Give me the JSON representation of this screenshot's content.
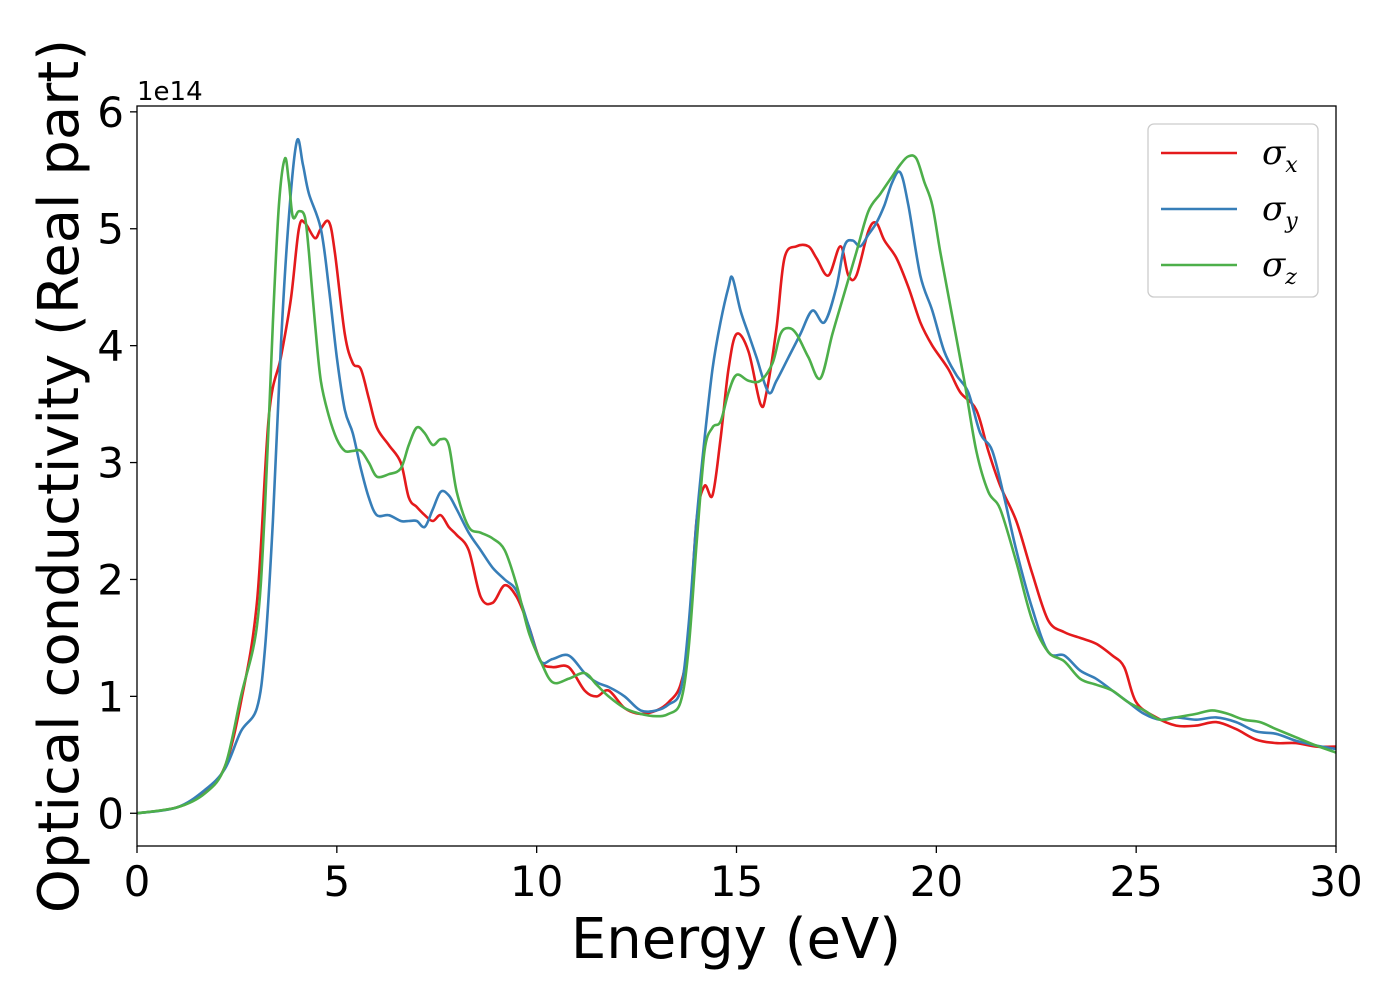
{
  "chart_data": {
    "type": "line",
    "title": "",
    "xlabel": "Energy (eV)",
    "ylabel": "Optical conductivity (Real part)",
    "y_offset_text": "1e14",
    "y_scale": 100000000000000.0,
    "xlim": [
      0,
      30
    ],
    "ylim": [
      -0.28,
      6.05
    ],
    "x_ticks": [
      0,
      5,
      10,
      15,
      20,
      25,
      30
    ],
    "y_ticks": [
      0,
      1,
      2,
      3,
      4,
      5,
      6
    ],
    "grid": false,
    "legend": "top-right",
    "series": [
      {
        "name": "σx",
        "symbol": "σ",
        "subscript": "x",
        "color": "#e41a1c",
        "x": [
          0,
          1,
          1.7,
          2.2,
          2.6,
          3.0,
          3.3,
          3.6,
          3.85,
          4.05,
          4.2,
          4.45,
          4.6,
          4.8,
          4.95,
          5.2,
          5.4,
          5.6,
          5.8,
          6.0,
          6.3,
          6.6,
          6.8,
          7.0,
          7.2,
          7.4,
          7.6,
          7.8,
          8.0,
          8.3,
          8.6,
          8.9,
          9.2,
          9.5,
          9.8,
          10.1,
          10.4,
          10.8,
          11.2,
          11.5,
          11.8,
          12.2,
          12.6,
          13.0,
          13.3,
          13.6,
          13.8,
          14.0,
          14.2,
          14.4,
          14.6,
          14.8,
          15.0,
          15.3,
          15.6,
          15.75,
          16.0,
          16.2,
          16.5,
          16.8,
          17.0,
          17.3,
          17.6,
          17.8,
          18.0,
          18.3,
          18.5,
          18.7,
          19.0,
          19.3,
          19.6,
          19.9,
          20.3,
          20.6,
          21.0,
          21.3,
          21.6,
          22.0,
          22.4,
          22.8,
          23.2,
          23.6,
          24.0,
          24.4,
          24.7,
          25.0,
          25.5,
          26.0,
          26.5,
          27.0,
          27.5,
          28.0,
          28.5,
          29.0,
          29.5,
          30.0
        ],
        "values": [
          0,
          0.05,
          0.18,
          0.4,
          0.95,
          1.8,
          3.4,
          3.9,
          4.4,
          5.0,
          5.05,
          4.92,
          5.0,
          5.06,
          4.8,
          4.1,
          3.85,
          3.8,
          3.55,
          3.3,
          3.15,
          3.0,
          2.7,
          2.62,
          2.55,
          2.5,
          2.55,
          2.45,
          2.38,
          2.25,
          1.85,
          1.8,
          1.95,
          1.85,
          1.6,
          1.3,
          1.25,
          1.25,
          1.05,
          1.0,
          1.05,
          0.9,
          0.85,
          0.88,
          0.95,
          1.1,
          1.5,
          2.5,
          2.8,
          2.72,
          3.2,
          3.8,
          4.1,
          3.95,
          3.5,
          3.6,
          4.15,
          4.75,
          4.85,
          4.85,
          4.75,
          4.6,
          4.85,
          4.6,
          4.6,
          4.98,
          5.05,
          4.9,
          4.75,
          4.5,
          4.2,
          4.0,
          3.8,
          3.6,
          3.45,
          3.1,
          2.8,
          2.5,
          2.05,
          1.65,
          1.55,
          1.5,
          1.45,
          1.35,
          1.25,
          0.95,
          0.82,
          0.75,
          0.75,
          0.78,
          0.72,
          0.63,
          0.6,
          0.6,
          0.57,
          0.57
        ]
      },
      {
        "name": "σy",
        "symbol": "σ",
        "subscript": "y",
        "color": "#377eb8",
        "x": [
          0,
          1,
          1.7,
          2.2,
          2.6,
          3.0,
          3.2,
          3.4,
          3.6,
          3.8,
          4.0,
          4.15,
          4.3,
          4.6,
          4.8,
          5.0,
          5.2,
          5.4,
          5.6,
          5.8,
          6.0,
          6.3,
          6.6,
          6.8,
          7.0,
          7.2,
          7.4,
          7.6,
          7.8,
          8.0,
          8.3,
          8.6,
          8.9,
          9.2,
          9.5,
          9.8,
          10.1,
          10.4,
          10.8,
          11.2,
          11.5,
          11.8,
          12.2,
          12.6,
          13.0,
          13.3,
          13.6,
          13.8,
          14.0,
          14.2,
          14.4,
          14.6,
          14.8,
          14.9,
          15.1,
          15.3,
          15.5,
          15.8,
          16.0,
          16.3,
          16.6,
          16.9,
          17.2,
          17.5,
          17.7,
          17.9,
          18.1,
          18.3,
          18.5,
          18.7,
          18.9,
          19.1,
          19.3,
          19.6,
          19.9,
          20.2,
          20.5,
          20.8,
          21.1,
          21.4,
          21.7,
          22.0,
          22.4,
          22.8,
          23.2,
          23.6,
          24.0,
          24.4,
          24.8,
          25.2,
          25.6,
          26.0,
          26.5,
          27.0,
          27.5,
          28.0,
          28.5,
          29.0,
          29.5,
          30.0
        ],
        "values": [
          0,
          0.05,
          0.2,
          0.38,
          0.7,
          0.9,
          1.4,
          2.5,
          4.0,
          5.1,
          5.75,
          5.55,
          5.3,
          5.0,
          4.5,
          3.9,
          3.45,
          3.25,
          2.95,
          2.7,
          2.55,
          2.55,
          2.5,
          2.5,
          2.5,
          2.45,
          2.6,
          2.75,
          2.72,
          2.6,
          2.4,
          2.25,
          2.1,
          2.0,
          1.9,
          1.6,
          1.3,
          1.32,
          1.35,
          1.2,
          1.12,
          1.08,
          1.0,
          0.88,
          0.88,
          0.93,
          1.05,
          1.6,
          2.5,
          3.2,
          3.8,
          4.2,
          4.5,
          4.58,
          4.3,
          4.1,
          3.9,
          3.6,
          3.7,
          3.9,
          4.1,
          4.3,
          4.2,
          4.5,
          4.85,
          4.9,
          4.85,
          4.95,
          5.05,
          5.2,
          5.4,
          5.48,
          5.2,
          4.6,
          4.3,
          3.95,
          3.75,
          3.6,
          3.25,
          3.1,
          2.7,
          2.25,
          1.75,
          1.38,
          1.35,
          1.22,
          1.15,
          1.05,
          0.95,
          0.85,
          0.8,
          0.82,
          0.8,
          0.82,
          0.78,
          0.7,
          0.68,
          0.62,
          0.58,
          0.55
        ]
      },
      {
        "name": "σz",
        "symbol": "σ",
        "subscript": "z",
        "color": "#4daf4a",
        "x": [
          0,
          1,
          1.7,
          2.2,
          2.6,
          3.0,
          3.2,
          3.4,
          3.55,
          3.7,
          3.8,
          3.9,
          4.05,
          4.2,
          4.3,
          4.45,
          4.6,
          4.8,
          5.0,
          5.2,
          5.4,
          5.6,
          5.8,
          6.0,
          6.3,
          6.6,
          6.8,
          7.0,
          7.2,
          7.4,
          7.6,
          7.8,
          8.0,
          8.3,
          8.6,
          8.9,
          9.2,
          9.5,
          9.8,
          10.1,
          10.4,
          10.8,
          11.2,
          11.5,
          11.8,
          12.2,
          12.6,
          13.0,
          13.3,
          13.6,
          13.8,
          14.0,
          14.2,
          14.4,
          14.6,
          14.8,
          15.0,
          15.3,
          15.6,
          15.9,
          16.1,
          16.3,
          16.5,
          16.8,
          17.1,
          17.4,
          17.7,
          18.0,
          18.3,
          18.6,
          18.9,
          19.1,
          19.3,
          19.5,
          19.7,
          19.9,
          20.1,
          20.4,
          20.7,
          21.0,
          21.3,
          21.6,
          22.0,
          22.4,
          22.8,
          23.2,
          23.6,
          24.0,
          24.4,
          24.8,
          25.2,
          25.6,
          26.0,
          26.5,
          26.9,
          27.3,
          27.7,
          28.1,
          28.5,
          29.0,
          29.5,
          30.0
        ],
        "values": [
          0,
          0.05,
          0.17,
          0.4,
          1.0,
          1.6,
          2.6,
          4.2,
          5.2,
          5.6,
          5.4,
          5.1,
          5.15,
          5.1,
          4.8,
          4.2,
          3.7,
          3.4,
          3.2,
          3.1,
          3.1,
          3.1,
          3.0,
          2.88,
          2.9,
          2.95,
          3.15,
          3.3,
          3.25,
          3.15,
          3.2,
          3.15,
          2.75,
          2.45,
          2.4,
          2.35,
          2.25,
          1.95,
          1.55,
          1.3,
          1.12,
          1.15,
          1.2,
          1.1,
          1.0,
          0.9,
          0.85,
          0.83,
          0.85,
          0.95,
          1.4,
          2.3,
          3.1,
          3.3,
          3.35,
          3.6,
          3.75,
          3.7,
          3.7,
          3.85,
          4.1,
          4.15,
          4.1,
          3.9,
          3.72,
          4.1,
          4.45,
          4.8,
          5.15,
          5.3,
          5.45,
          5.55,
          5.62,
          5.6,
          5.4,
          5.2,
          4.8,
          4.25,
          3.7,
          3.1,
          2.75,
          2.6,
          2.15,
          1.65,
          1.38,
          1.3,
          1.15,
          1.1,
          1.05,
          0.95,
          0.88,
          0.8,
          0.82,
          0.85,
          0.88,
          0.85,
          0.8,
          0.78,
          0.72,
          0.65,
          0.58,
          0.52
        ]
      }
    ]
  }
}
